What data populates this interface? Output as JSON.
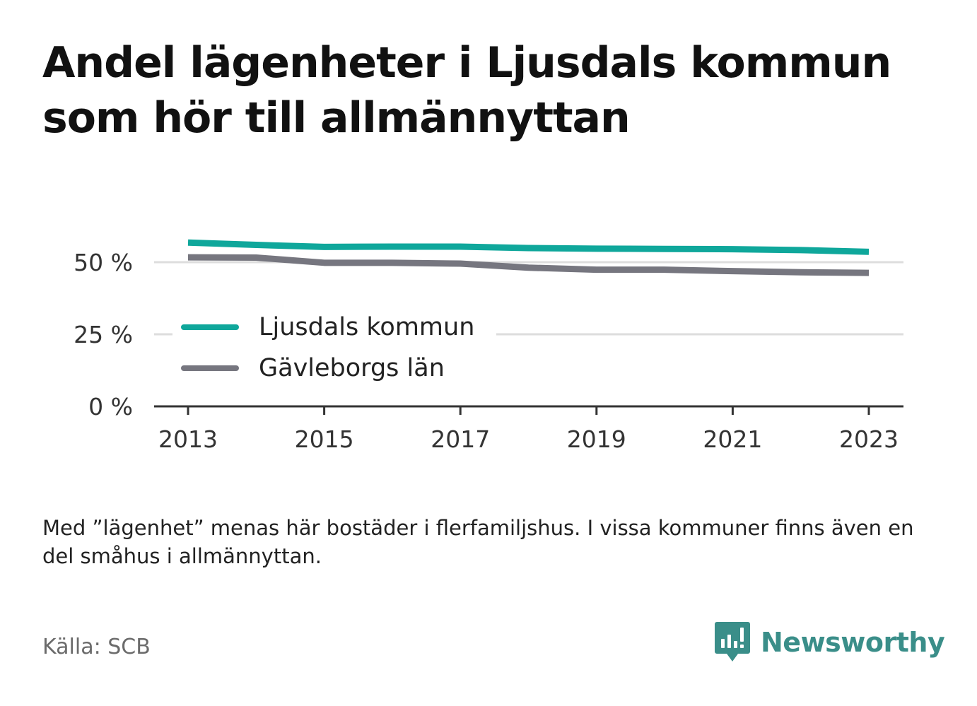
{
  "title": "Andel lägenheter i Ljusdals kommun som hör till allmännyttan",
  "note": "Med ”lägenhet” menas här bostäder i flerfamiljshus. I vissa kommuner finns även en del småhus i allmännyttan.",
  "source": "Källa: SCB",
  "brand": {
    "name": "Newsworthy",
    "icon": "newsworthy-logo-icon",
    "color": "#3a8e89"
  },
  "colors": {
    "ljusdal": "#0fa79b",
    "gavleborg": "#76767f",
    "gridline": "#dddddd",
    "axis": "#333333"
  },
  "chart_data": {
    "type": "line",
    "x": [
      2013,
      2014,
      2015,
      2016,
      2017,
      2018,
      2019,
      2020,
      2021,
      2022,
      2023
    ],
    "x_ticks": [
      "2013",
      "2015",
      "2017",
      "2019",
      "2021",
      "2023"
    ],
    "y_ticks": [
      "0 %",
      "25 %",
      "50 %"
    ],
    "y_tick_values": [
      0,
      25,
      50
    ],
    "ylim": [
      0,
      50
    ],
    "grid": true,
    "legend_position": "center-left",
    "series": [
      {
        "name": "Ljusdals kommun",
        "color": "#0fa79b",
        "values": [
          56.8,
          56.0,
          55.3,
          55.4,
          55.4,
          54.9,
          54.7,
          54.6,
          54.5,
          54.2,
          53.6
        ]
      },
      {
        "name": "Gävleborgs län",
        "color": "#76767f",
        "values": [
          51.7,
          51.6,
          49.8,
          49.8,
          49.5,
          48.1,
          47.4,
          47.4,
          46.9,
          46.5,
          46.3
        ]
      }
    ],
    "xlabel": "",
    "ylabel": ""
  }
}
